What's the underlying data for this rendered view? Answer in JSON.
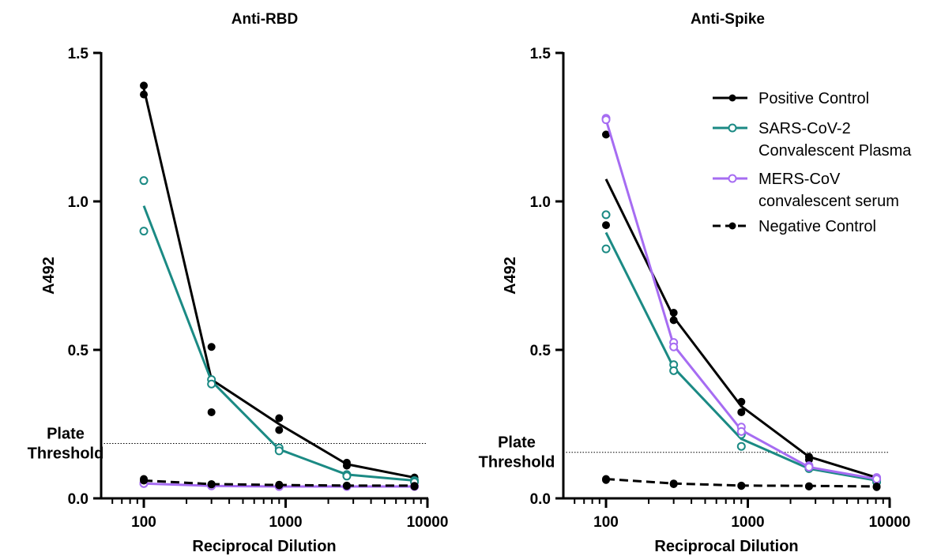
{
  "legend": [
    {
      "label": "Positive Control",
      "color": "#000000",
      "marker": "filled",
      "dashed": false
    },
    {
      "label": "SARS-CoV-2\nConvalescent Plasma",
      "color": "#1b8a84",
      "marker": "open",
      "dashed": false
    },
    {
      "label": "MERS-CoV\nconvalescent serum",
      "color": "#a66cf2",
      "marker": "open",
      "dashed": false
    },
    {
      "label": "Negative Control",
      "color": "#000000",
      "marker": "filled",
      "dashed": true
    }
  ],
  "chart_data": [
    {
      "type": "line",
      "title": "Anti-RBD",
      "xlabel": "Reciprocal Dilution",
      "ylabel": "A492",
      "x_scale": "log",
      "xlim": [
        50,
        10000
      ],
      "ylim": [
        0,
        1.5
      ],
      "xticks": [
        100,
        1000,
        10000
      ],
      "xtick_labels": [
        "100",
        "1000",
        "10000"
      ],
      "yticks": [
        0,
        0.5,
        1.0,
        1.5
      ],
      "ytick_labels": [
        "0.0",
        "0.5",
        "1.0",
        "1.5"
      ],
      "x": [
        100,
        300,
        900,
        2700,
        8100
      ],
      "threshold": {
        "label": "Plate Threshold",
        "value": 0.185
      },
      "series": [
        {
          "name": "Positive Control",
          "color": "#000000",
          "marker": "filled",
          "dashed": false,
          "mean": [
            1.38,
            0.4,
            0.25,
            0.115,
            0.07
          ],
          "replicates": [
            [
              1.39,
              1.36
            ],
            [
              0.51,
              0.29
            ],
            [
              0.27,
              0.23
            ],
            [
              0.12,
              0.11
            ],
            [
              0.07,
              0.065
            ]
          ]
        },
        {
          "name": "SARS-CoV-2 Convalescent Plasma",
          "color": "#1b8a84",
          "marker": "open",
          "dashed": false,
          "mean": [
            0.985,
            0.395,
            0.165,
            0.08,
            0.06
          ],
          "replicates": [
            [
              1.07,
              0.9
            ],
            [
              0.4,
              0.385
            ],
            [
              0.17,
              0.16
            ],
            [
              0.08,
              0.075
            ],
            [
              0.06,
              0.055
            ]
          ]
        },
        {
          "name": "MERS-CoV convalescent serum",
          "color": "#a66cf2",
          "marker": "open",
          "dashed": false,
          "mean": [
            0.05,
            0.042,
            0.04,
            0.04,
            0.04
          ],
          "replicates": [
            [
              0.05,
              0.05
            ],
            [
              0.043,
              0.042
            ],
            [
              0.04,
              0.04
            ],
            [
              0.04,
              0.04
            ],
            [
              0.04,
              0.04
            ]
          ]
        },
        {
          "name": "Negative Control",
          "color": "#000000",
          "marker": "filled",
          "dashed": true,
          "mean": [
            0.06,
            0.048,
            0.045,
            0.043,
            0.043
          ],
          "replicates": [
            [
              0.065,
              0.06
            ],
            [
              0.048,
              0.047
            ],
            [
              0.046,
              0.044
            ],
            [
              0.043,
              0.042
            ],
            [
              0.042,
              0.04
            ]
          ]
        }
      ]
    },
    {
      "type": "line",
      "title": "Anti-Spike",
      "xlabel": "Reciprocal Dilution",
      "ylabel": "A492",
      "x_scale": "log",
      "xlim": [
        50,
        10000
      ],
      "ylim": [
        0,
        1.5
      ],
      "xticks": [
        100,
        1000,
        10000
      ],
      "xtick_labels": [
        "100",
        "1000",
        "10000"
      ],
      "yticks": [
        0,
        0.5,
        1.0,
        1.5
      ],
      "ytick_labels": [
        "0.0",
        "0.5",
        "1.0",
        "1.5"
      ],
      "x": [
        100,
        300,
        900,
        2700,
        8100
      ],
      "threshold": {
        "label": "Plate Threshold",
        "value": 0.155
      },
      "series": [
        {
          "name": "Positive Control",
          "color": "#000000",
          "marker": "filled",
          "dashed": false,
          "mean": [
            1.075,
            0.61,
            0.31,
            0.14,
            0.07
          ],
          "replicates": [
            [
              1.225,
              0.92
            ],
            [
              0.625,
              0.6
            ],
            [
              0.325,
              0.29
            ],
            [
              0.14,
              0.13
            ],
            [
              0.07,
              0.065
            ]
          ]
        },
        {
          "name": "SARS-CoV-2 Convalescent Plasma",
          "color": "#1b8a84",
          "marker": "open",
          "dashed": false,
          "mean": [
            0.895,
            0.44,
            0.2,
            0.1,
            0.06
          ],
          "replicates": [
            [
              0.955,
              0.84
            ],
            [
              0.45,
              0.43
            ],
            [
              0.215,
              0.175
            ],
            [
              0.105,
              0.1
            ],
            [
              0.06,
              0.055
            ]
          ]
        },
        {
          "name": "MERS-CoV convalescent serum",
          "color": "#a66cf2",
          "marker": "open",
          "dashed": false,
          "mean": [
            1.275,
            0.515,
            0.23,
            0.105,
            0.065
          ],
          "replicates": [
            [
              1.28,
              1.275
            ],
            [
              0.525,
              0.51
            ],
            [
              0.24,
              0.225
            ],
            [
              0.11,
              0.105
            ],
            [
              0.07,
              0.065
            ]
          ]
        },
        {
          "name": "Negative Control",
          "color": "#000000",
          "marker": "filled",
          "dashed": true,
          "mean": [
            0.065,
            0.05,
            0.043,
            0.042,
            0.04
          ],
          "replicates": [
            [
              0.065,
              0.062
            ],
            [
              0.05,
              0.048
            ],
            [
              0.043,
              0.042
            ],
            [
              0.041,
              0.04
            ],
            [
              0.04,
              0.038
            ]
          ]
        }
      ]
    }
  ]
}
